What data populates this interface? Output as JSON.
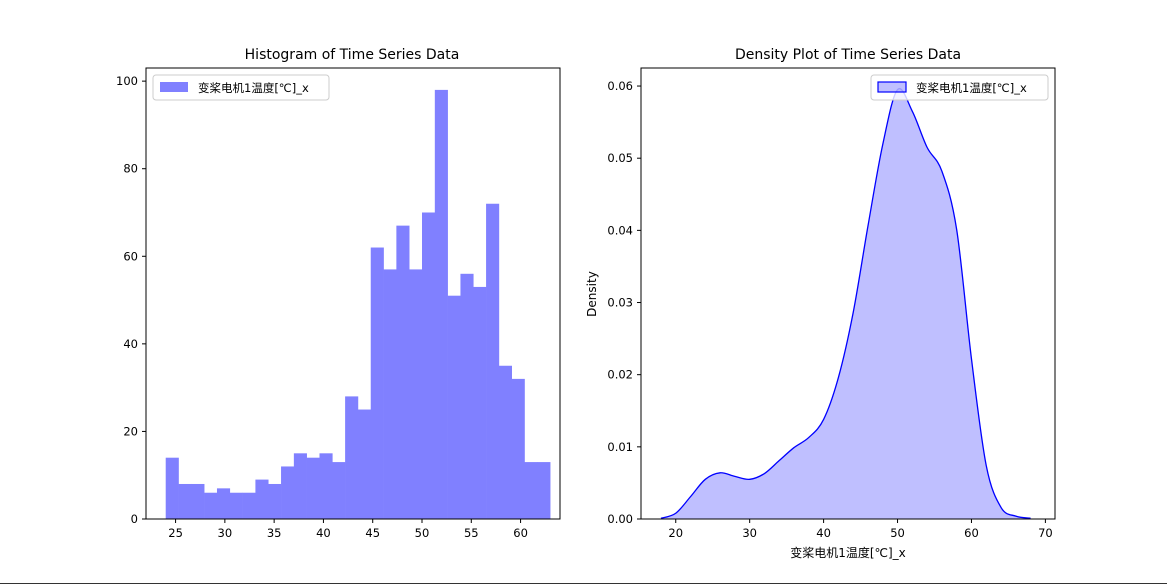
{
  "chart_data": [
    {
      "type": "bar",
      "title": "Histogram of Time Series Data",
      "xlabel": "",
      "ylabel": "",
      "xlim": [
        22,
        64
      ],
      "ylim": [
        0,
        103
      ],
      "xticks": [
        25,
        30,
        35,
        40,
        45,
        50,
        55,
        60
      ],
      "yticks": [
        0,
        20,
        40,
        60,
        80,
        100
      ],
      "bin_start": 24.0,
      "bin_width": 1.3,
      "values": [
        14,
        8,
        8,
        6,
        7,
        6,
        6,
        9,
        8,
        12,
        15,
        14,
        15,
        13,
        28,
        25,
        62,
        57,
        67,
        57,
        70,
        98,
        51,
        56,
        53,
        72,
        35,
        32,
        13,
        13
      ],
      "color": "#8080ff",
      "legend": {
        "label": "变桨电机1温度[℃]_x",
        "position": "upper left"
      }
    },
    {
      "type": "area",
      "title": "Density Plot of Time Series Data",
      "xlabel": "变桨电机1温度[℃]_x",
      "ylabel": "Density",
      "xlim": [
        15.3,
        71.3
      ],
      "ylim": [
        0,
        0.0625
      ],
      "xticks": [
        20,
        30,
        40,
        50,
        60,
        70
      ],
      "yticks": [
        "0.00",
        "0.01",
        "0.02",
        "0.03",
        "0.04",
        "0.05",
        "0.06"
      ],
      "x": [
        18,
        20,
        22,
        24,
        26,
        28,
        30,
        32,
        34,
        36,
        38,
        40,
        42,
        44,
        46,
        48,
        50,
        52,
        54,
        56,
        58,
        60,
        62,
        64,
        66,
        68
      ],
      "y": [
        0.0001,
        0.0008,
        0.0031,
        0.0055,
        0.0064,
        0.0059,
        0.0055,
        0.0063,
        0.0081,
        0.0099,
        0.0113,
        0.0138,
        0.0196,
        0.0286,
        0.0406,
        0.0519,
        0.0595,
        0.0565,
        0.0515,
        0.0482,
        0.0401,
        0.0222,
        0.0074,
        0.0016,
        0.0004,
        0.0001
      ],
      "color": "#0000ff",
      "legend": {
        "label": "变桨电机1温度[℃]_x",
        "position": "upper right"
      }
    }
  ]
}
